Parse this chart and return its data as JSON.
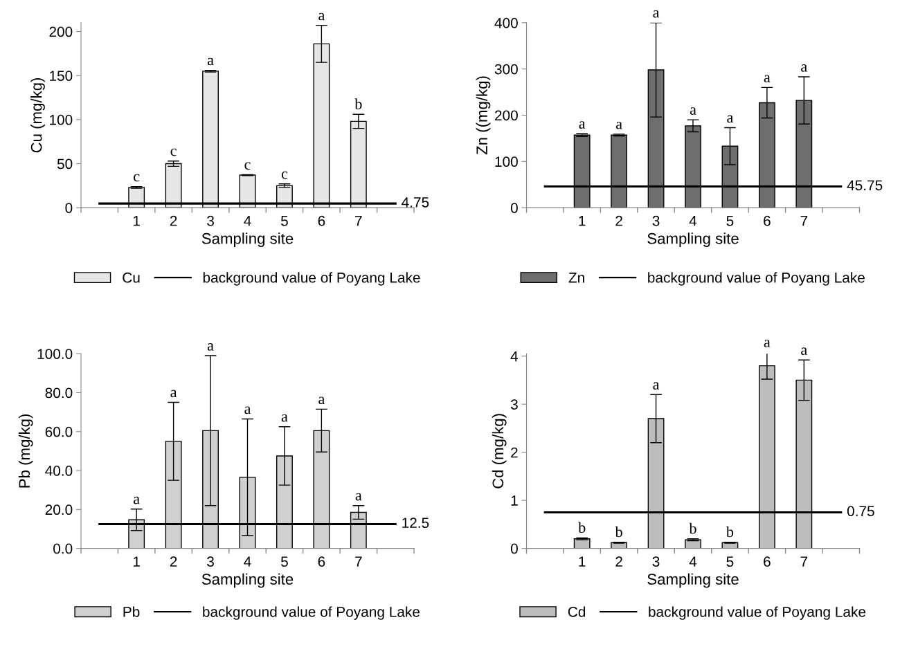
{
  "chart_data": [
    {
      "type": "bar",
      "xlabel": "Sampling site",
      "ylabel": "Cu (mg/kg)",
      "categories": [
        null,
        "1",
        "2",
        "3",
        "4",
        "5",
        "6",
        "7",
        null
      ],
      "ylim": [
        0,
        210
      ],
      "yticks": [
        0,
        50,
        100,
        150,
        200
      ],
      "legend": "bottom",
      "series": [
        {
          "name": "Cu",
          "color": "#e6e6e6",
          "values": [
            null,
            23,
            50,
            155,
            37,
            25,
            186,
            98,
            null
          ],
          "errors": [
            null,
            1,
            3,
            1,
            0.5,
            2,
            21,
            8,
            null
          ]
        },
        {
          "type": "line",
          "name": "background value of Poyang Lake",
          "color": "#000000",
          "values": [
            4.75,
            4.75,
            4.75,
            4.75,
            4.75,
            4.75,
            4.75,
            4.75,
            4.75
          ],
          "value_labels": [
            null,
            null,
            null,
            null,
            null,
            null,
            null,
            null,
            "4.75"
          ]
        }
      ],
      "annotations": [
        {
          "text": "c",
          "x": "1",
          "y": 24
        },
        {
          "text": "c",
          "x": "2",
          "y": 53
        },
        {
          "text": "a",
          "x": "3",
          "y": 156
        },
        {
          "text": "c",
          "x": "4",
          "y": 37.5
        },
        {
          "text": "c",
          "x": "5",
          "y": 27
        },
        {
          "text": "a",
          "x": "6",
          "y": 207
        },
        {
          "text": "b",
          "x": "7",
          "y": 106
        }
      ]
    },
    {
      "type": "bar",
      "xlabel": "Sampling site",
      "ylabel": "Zn ((mg/kg)",
      "categories": [
        null,
        "1",
        "2",
        "3",
        "4",
        "5",
        "6",
        "7",
        null
      ],
      "ylim": [
        0,
        400
      ],
      "yticks": [
        0,
        100,
        200,
        300,
        400
      ],
      "legend": "bottom",
      "series": [
        {
          "name": "Zn",
          "color": "#6e6e6e",
          "values": [
            null,
            157,
            157,
            298,
            177,
            133,
            227,
            232,
            null
          ],
          "errors": [
            null,
            3,
            2,
            102,
            13,
            40,
            33,
            51,
            null
          ]
        },
        {
          "type": "line",
          "name": "background value of Poyang Lake",
          "color": "#000000",
          "values": [
            45.75,
            45.75,
            45.75,
            45.75,
            45.75,
            45.75,
            45.75,
            45.75,
            45.75
          ],
          "value_labels": [
            null,
            null,
            null,
            null,
            null,
            null,
            null,
            null,
            "45.75"
          ]
        }
      ],
      "annotations": [
        {
          "text": "a",
          "x": "1",
          "y": 160
        },
        {
          "text": "a",
          "x": "2",
          "y": 159
        },
        {
          "text": "a",
          "x": "3",
          "y": 400
        },
        {
          "text": "a",
          "x": "4",
          "y": 190
        },
        {
          "text": "a",
          "x": "5",
          "y": 173
        },
        {
          "text": "a",
          "x": "6",
          "y": 260
        },
        {
          "text": "a",
          "x": "7",
          "y": 283
        }
      ]
    },
    {
      "type": "bar",
      "xlabel": "Sampling site",
      "ylabel": "Pb (mg/kg)",
      "categories": [
        null,
        "1",
        "2",
        "3",
        "4",
        "5",
        "6",
        "7",
        null
      ],
      "ylim": [
        0,
        100
      ],
      "yticks": [
        {
          "value": 0,
          "label": "0.0"
        },
        {
          "value": 20,
          "label": "20.0"
        },
        {
          "value": 40,
          "label": "40.0"
        },
        {
          "value": 60,
          "label": "60.0"
        },
        {
          "value": 80,
          "label": "80.0"
        },
        {
          "value": 100,
          "label": "100.0"
        }
      ],
      "legend": "bottom",
      "series": [
        {
          "name": "Pb",
          "color": "#d0d0d0",
          "values": [
            null,
            14.7,
            55,
            60.5,
            36.5,
            47.5,
            60.5,
            18.5,
            null
          ],
          "errors": [
            null,
            5.5,
            20,
            38.5,
            30,
            15,
            11,
            3.5,
            null
          ]
        },
        {
          "type": "line",
          "name": "background value of Poyang Lake",
          "color": "#000000",
          "values": [
            12.5,
            12.5,
            12.5,
            12.5,
            12.5,
            12.5,
            12.5,
            12.5,
            12.5
          ],
          "value_labels": [
            null,
            null,
            null,
            null,
            null,
            null,
            null,
            null,
            "12.5"
          ]
        }
      ],
      "annotations": [
        {
          "text": "a",
          "x": "1",
          "y": 20.2
        },
        {
          "text": "a",
          "x": "2",
          "y": 75
        },
        {
          "text": "a",
          "x": "3",
          "y": 99
        },
        {
          "text": "a",
          "x": "4",
          "y": 66.5
        },
        {
          "text": "a",
          "x": "5",
          "y": 62.5
        },
        {
          "text": "a",
          "x": "6",
          "y": 71.5
        },
        {
          "text": "a",
          "x": "7",
          "y": 22
        }
      ]
    },
    {
      "type": "bar",
      "xlabel": "Sampling site",
      "ylabel": "Cd (mg/kg)",
      "categories": [
        null,
        "1",
        "2",
        "3",
        "4",
        "5",
        "6",
        "7",
        null
      ],
      "ylim": [
        0,
        4.05
      ],
      "yticks": [
        0,
        1,
        2,
        3,
        4
      ],
      "legend": "bottom",
      "series": [
        {
          "name": "Cd",
          "color": "#bdbdbd",
          "values": [
            null,
            0.2,
            0.12,
            2.7,
            0.18,
            0.12,
            3.8,
            3.5,
            null
          ],
          "errors": [
            null,
            0.02,
            0.01,
            0.5,
            0.02,
            0.01,
            0.28,
            0.42,
            null
          ]
        },
        {
          "type": "line",
          "name": "background value of Poyang Lake",
          "color": "#000000",
          "values": [
            0.75,
            0.75,
            0.75,
            0.75,
            0.75,
            0.75,
            0.75,
            0.75,
            0.75
          ],
          "value_labels": [
            null,
            null,
            null,
            null,
            null,
            null,
            null,
            null,
            "0.75"
          ]
        }
      ],
      "annotations": [
        {
          "text": "b",
          "x": "1",
          "y": 0.22
        },
        {
          "text": "b",
          "x": "2",
          "y": 0.13
        },
        {
          "text": "a",
          "x": "3",
          "y": 3.2
        },
        {
          "text": "b",
          "x": "4",
          "y": 0.2
        },
        {
          "text": "b",
          "x": "5",
          "y": 0.13
        },
        {
          "text": "a",
          "x": "6",
          "y": 4.08
        },
        {
          "text": "a",
          "x": "7",
          "y": 3.92
        }
      ]
    }
  ]
}
